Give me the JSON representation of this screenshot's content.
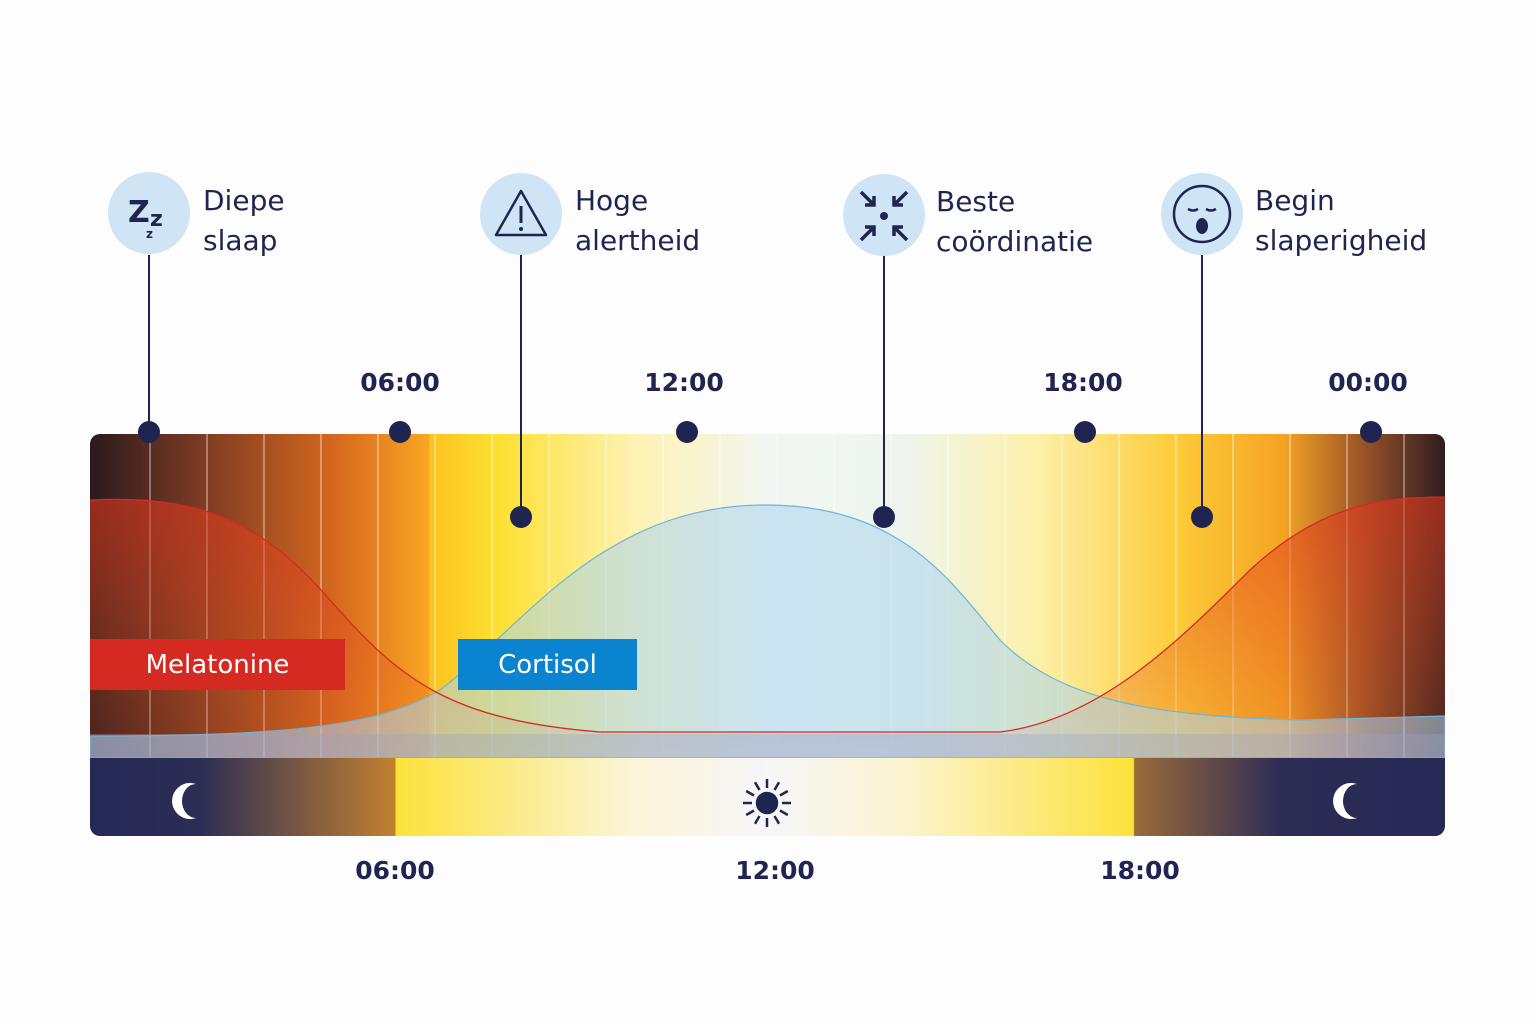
{
  "annotations": [
    {
      "line1": "Diepe",
      "line2": "slaap",
      "icon": "zzz-sleep-icon"
    },
    {
      "line1": "Hoge",
      "line2": "alertheid",
      "icon": "warning-triangle-icon"
    },
    {
      "line1": "Beste",
      "line2": "coördinatie",
      "icon": "arrows-converge-icon"
    },
    {
      "line1": "Begin",
      "line2": "slaperigheid",
      "icon": "yawning-face-icon"
    }
  ],
  "top_time_labels": [
    "06:00",
    "12:00",
    "18:00",
    "00:00"
  ],
  "bottom_time_labels": [
    "06:00",
    "12:00",
    "18:00"
  ],
  "curves": {
    "melatonin": {
      "label": "Melatonine",
      "color": "#d42a22"
    },
    "cortisol": {
      "label": "Cortisol",
      "color": "#0a84cf"
    }
  },
  "day_night_bar": {
    "left_icon": "moon-icon",
    "center_icon": "sun-icon",
    "right_icon": "moon-icon"
  },
  "colors": {
    "navy": "#1f2550",
    "night": "#252a55",
    "icon_bg": "#cfe5f5"
  }
}
